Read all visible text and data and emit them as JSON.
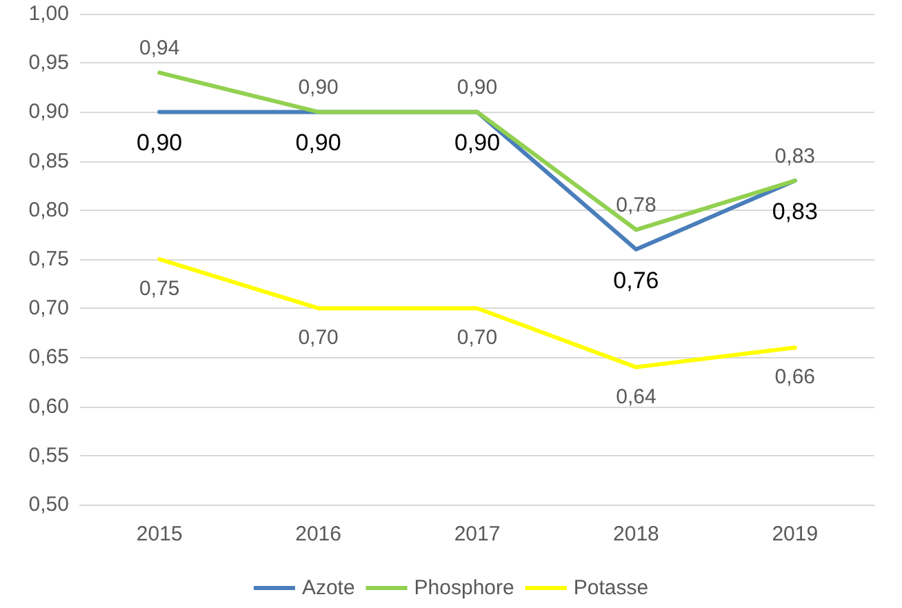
{
  "chart_data": {
    "type": "line",
    "categories": [
      "2015",
      "2016",
      "2017",
      "2018",
      "2019"
    ],
    "series": [
      {
        "name": "Azote",
        "color": "#4a7ebb",
        "values": [
          0.9,
          0.9,
          0.9,
          0.76,
          0.83
        ],
        "value_labels": [
          "0,90",
          "0,90",
          "0,90",
          "0,76",
          "0,83"
        ]
      },
      {
        "name": "Phosphore",
        "color": "#92d050",
        "values": [
          0.94,
          0.9,
          0.9,
          0.78,
          0.83
        ],
        "value_labels": [
          "0,94",
          "0,90",
          "0,90",
          "0,78",
          "0,83"
        ]
      },
      {
        "name": "Potasse",
        "color": "#ffff00",
        "values": [
          0.75,
          0.7,
          0.7,
          0.64,
          0.66
        ],
        "value_labels": [
          "0,75",
          "0,70",
          "0,70",
          "0,64",
          "0,66"
        ]
      }
    ],
    "ylim": [
      0.5,
      1.0
    ],
    "yticks": [
      {
        "value": 0.5,
        "label": "0,50"
      },
      {
        "value": 0.55,
        "label": "0,55"
      },
      {
        "value": 0.6,
        "label": "0,60"
      },
      {
        "value": 0.65,
        "label": "0,65"
      },
      {
        "value": 0.7,
        "label": "0,70"
      },
      {
        "value": 0.75,
        "label": "0,75"
      },
      {
        "value": 0.8,
        "label": "0,80"
      },
      {
        "value": 0.85,
        "label": "0,85"
      },
      {
        "value": 0.9,
        "label": "0,90"
      },
      {
        "value": 0.95,
        "label": "0,95"
      },
      {
        "value": 1.0,
        "label": "1,00"
      }
    ],
    "grid": "y",
    "legend": "bottom",
    "marker": "none",
    "line_style": "solid"
  }
}
